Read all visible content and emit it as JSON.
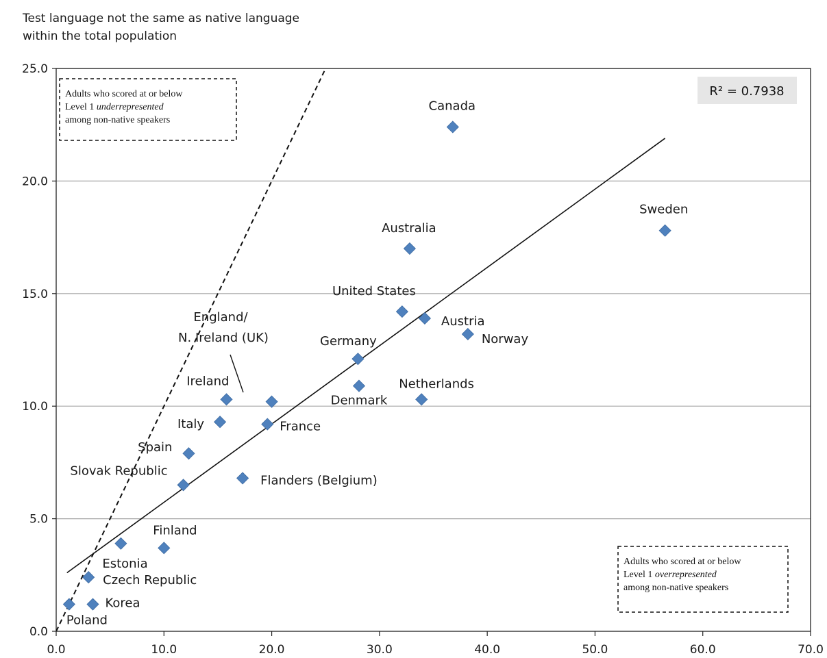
{
  "chart_data": {
    "type": "scatter",
    "ylabel_lines": [
      "Test language not the same as native language",
      "within the total population"
    ],
    "xlim": [
      0,
      70
    ],
    "ylim": [
      0,
      25
    ],
    "x_ticks": [
      "0.0",
      "10.0",
      "20.0",
      "30.0",
      "40.0",
      "50.0",
      "60.0",
      "70.0"
    ],
    "y_ticks": [
      "0.0",
      "5.0",
      "10.0",
      "15.0",
      "20.0",
      "25.0"
    ],
    "grid": "horizontal",
    "marker_color": "#4f81bd",
    "points": [
      {
        "label": "Poland",
        "x": 1.2,
        "y": 1.2
      },
      {
        "label": "Korea",
        "x": 3.4,
        "y": 1.2
      },
      {
        "label": "Czech Republic",
        "x": 3.0,
        "y": 2.4
      },
      {
        "label": "Estonia",
        "x": 6.0,
        "y": 3.9
      },
      {
        "label": "Finland",
        "x": 10.0,
        "y": 3.7
      },
      {
        "label": "Slovak Republic",
        "x": 11.8,
        "y": 6.5
      },
      {
        "label": "Spain",
        "x": 12.3,
        "y": 7.9
      },
      {
        "label": "Flanders (Belgium)",
        "x": 17.3,
        "y": 6.8
      },
      {
        "label": "Italy",
        "x": 15.2,
        "y": 9.3
      },
      {
        "label": "Ireland",
        "x": 15.8,
        "y": 10.3
      },
      {
        "label": "England/ N. Ireland (UK)",
        "x": 20.0,
        "y": 10.2
      },
      {
        "label": "France",
        "x": 19.6,
        "y": 9.2
      },
      {
        "label": "Germany",
        "x": 28.0,
        "y": 12.1
      },
      {
        "label": "Denmark",
        "x": 28.1,
        "y": 10.9
      },
      {
        "label": "Netherlands",
        "x": 33.9,
        "y": 10.3
      },
      {
        "label": "United States",
        "x": 32.1,
        "y": 14.2
      },
      {
        "label": "Austria",
        "x": 34.2,
        "y": 13.9
      },
      {
        "label": "Norway",
        "x": 38.2,
        "y": 13.2
      },
      {
        "label": "Australia",
        "x": 32.8,
        "y": 17.0
      },
      {
        "label": "Canada",
        "x": 36.8,
        "y": 22.4
      },
      {
        "label": "Sweden",
        "x": 56.5,
        "y": 17.8
      }
    ],
    "trendline": {
      "type": "linear",
      "from": [
        1.0,
        2.6
      ],
      "to": [
        56.5,
        21.9
      ]
    },
    "parity_line": {
      "from": [
        0,
        0
      ],
      "to": [
        25,
        25
      ],
      "style": "dashed"
    },
    "r_squared_label": "R² = 0.7938",
    "annotations": {
      "upper_left": {
        "line1": "Adults who scored at or below",
        "line2_normal": "Level 1 ",
        "line2_italic": "underrepresented",
        "line3": "among non-native speakers"
      },
      "lower_right": {
        "line1": "Adults who scored at or below",
        "line2_normal": "Level 1 ",
        "line2_italic": "overrepresented",
        "line3": "among non-native speakers"
      }
    }
  }
}
